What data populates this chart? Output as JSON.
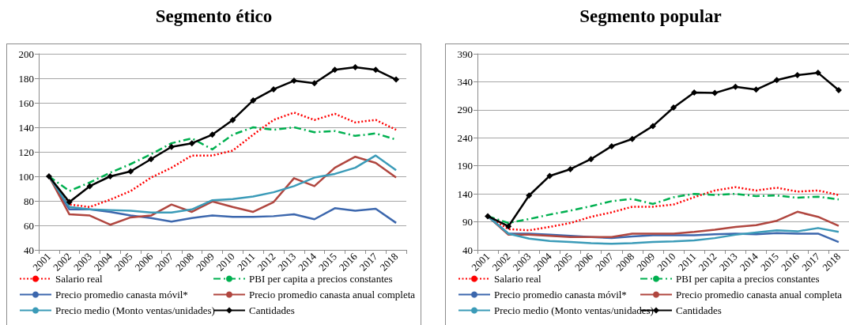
{
  "chart_data": [
    {
      "type": "line",
      "title": "Segmento ético",
      "categories": [
        "2001",
        "2002",
        "2003",
        "2004",
        "2005",
        "2006",
        "2007",
        "2008",
        "2009",
        "2010",
        "2011",
        "2012",
        "2013",
        "2014",
        "2015",
        "2016",
        "2017",
        "2018"
      ],
      "ylim": [
        40,
        200
      ],
      "yticks": [
        40,
        60,
        80,
        100,
        120,
        140,
        160,
        180,
        200
      ],
      "grid": "y",
      "legend": "bottom",
      "series": [
        {
          "name": "Salario real",
          "color": "#ff0000",
          "line_style": "dotted",
          "marker": "none",
          "values": [
            100,
            77,
            75,
            81,
            88,
            99,
            107,
            117,
            117,
            121,
            134,
            146,
            152,
            146,
            151,
            144,
            146,
            138
          ]
        },
        {
          "name": "PBI per capita a precios constantes",
          "color": "#00b050",
          "line_style": "dashed",
          "marker": "none",
          "values": [
            100,
            88,
            95,
            103,
            110,
            118,
            127,
            131,
            122,
            134,
            140,
            138,
            140,
            136,
            137,
            133,
            135,
            130
          ]
        },
        {
          "name": "Precio promedio canasta móvil*",
          "color": "#3c67ad",
          "line_style": "solid",
          "marker": "none",
          "values": [
            100,
            73,
            73,
            71,
            68,
            66,
            63,
            66,
            68,
            67,
            67,
            67.5,
            69,
            65,
            74,
            72,
            73.5,
            62
          ]
        },
        {
          "name": "Precio promedio canasta anual completa",
          "color": "#b0463f",
          "line_style": "solid",
          "marker": "none",
          "values": [
            100,
            69,
            68,
            60.5,
            66.5,
            68,
            77,
            71,
            79.5,
            75,
            71,
            79,
            98.5,
            92,
            107,
            116,
            111,
            99
          ]
        },
        {
          "name": "Precio medio (Monto ventas/unidades)",
          "color": "#3b9bb8",
          "line_style": "solid",
          "marker": "none",
          "values": [
            100,
            75,
            73,
            72.5,
            72,
            70.5,
            70.5,
            73,
            80.5,
            81.5,
            83.5,
            87,
            92,
            99,
            102,
            107,
            117,
            105
          ]
        },
        {
          "name": "Cantidades",
          "color": "#000000",
          "line_style": "solid",
          "marker": "diamond",
          "values": [
            100,
            79,
            92,
            100,
            104,
            114,
            124,
            127,
            134,
            146,
            162,
            171,
            178,
            176,
            187,
            189,
            187,
            179
          ]
        }
      ]
    },
    {
      "type": "line",
      "title": "Segmento popular",
      "categories": [
        "2001",
        "2002",
        "2003",
        "2004",
        "2005",
        "2006",
        "2007",
        "2008",
        "2009",
        "2010",
        "2011",
        "2012",
        "2013",
        "2014",
        "2015",
        "2016",
        "2017",
        "2018"
      ],
      "ylim": [
        40,
        390
      ],
      "yticks": [
        40,
        90,
        140,
        190,
        240,
        290,
        340,
        390
      ],
      "grid": "y",
      "legend": "bottom",
      "series": [
        {
          "name": "Salario real",
          "color": "#ff0000",
          "line_style": "dotted",
          "marker": "none",
          "values": [
            100,
            77,
            75,
            81,
            88,
            99,
            107,
            117,
            117,
            121,
            134,
            146,
            152,
            146,
            151,
            144,
            146,
            138
          ]
        },
        {
          "name": "PBI per capita a precios constantes",
          "color": "#00b050",
          "line_style": "dashed",
          "marker": "none",
          "values": [
            100,
            88,
            95,
            103,
            110,
            118,
            127,
            131,
            122,
            134,
            140,
            138,
            140,
            136,
            137,
            133,
            135,
            130
          ]
        },
        {
          "name": "Precio promedio canasta móvil*",
          "color": "#3c67ad",
          "line_style": "solid",
          "marker": "none",
          "values": [
            100,
            69,
            69,
            67,
            65,
            63,
            61,
            64,
            66,
            66,
            66,
            68,
            69,
            68,
            70,
            69,
            69,
            54
          ]
        },
        {
          "name": "Precio promedio canasta anual completa",
          "color": "#b0463f",
          "line_style": "solid",
          "marker": "none",
          "values": [
            100,
            67,
            67,
            65,
            63,
            63,
            63,
            69,
            69,
            69,
            72,
            76,
            81,
            84,
            92,
            108,
            99,
            83
          ]
        },
        {
          "name": "Precio medio (Monto ventas/unidades)",
          "color": "#3b9bb8",
          "line_style": "solid",
          "marker": "none",
          "values": [
            100,
            69,
            60,
            56,
            54,
            52,
            51,
            52,
            54,
            55,
            57,
            61,
            67,
            71,
            75,
            73,
            79,
            72
          ]
        },
        {
          "name": "Cantidades",
          "color": "#000000",
          "line_style": "solid",
          "marker": "diamond",
          "values": [
            100,
            82,
            137,
            172,
            184,
            202,
            225,
            238,
            261,
            294,
            321,
            320,
            331,
            326,
            343,
            352,
            356,
            325
          ]
        }
      ]
    }
  ]
}
